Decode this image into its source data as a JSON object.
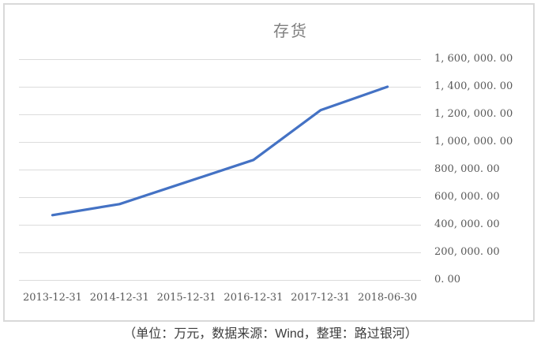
{
  "chart": {
    "title": "存货",
    "caption": "（单位：万元，数据来源：Wind，整理：路过银河）"
  },
  "colors": {
    "line": "#4472C4",
    "gridline": "#dcdcdc",
    "frame_border": "#d9d9d9",
    "title_text": "#7f7f7f",
    "axis_text": "#595959",
    "caption_text": "#3d3d3d",
    "background": "#ffffff"
  },
  "chart_data": {
    "type": "line",
    "title": "存货",
    "xlabel": "",
    "ylabel": "",
    "categories": [
      "2013-12-31",
      "2014-12-31",
      "2015-12-31",
      "2016-12-31",
      "2017-12-31",
      "2018-06-30"
    ],
    "series": [
      {
        "name": "存货",
        "color": "#4472C4",
        "values": [
          470000,
          550000,
          710000,
          870000,
          1230000,
          1400000
        ]
      }
    ],
    "ylim": [
      0,
      1600000
    ],
    "ytick_interval": 200000,
    "ytick_labels_top_to_bottom": [
      "1, 600, 000. 00",
      "1, 400, 000. 00",
      "1, 200, 000. 00",
      "1, 000, 000. 00",
      "800, 000. 00",
      "600, 000. 00",
      "400, 000. 00",
      "200, 000. 00",
      "0. 00"
    ],
    "grid": true,
    "legend": "none",
    "y_axis_side": "right",
    "unit_annotation": "（单位：万元，数据来源：Wind，整理：路过银河）"
  }
}
